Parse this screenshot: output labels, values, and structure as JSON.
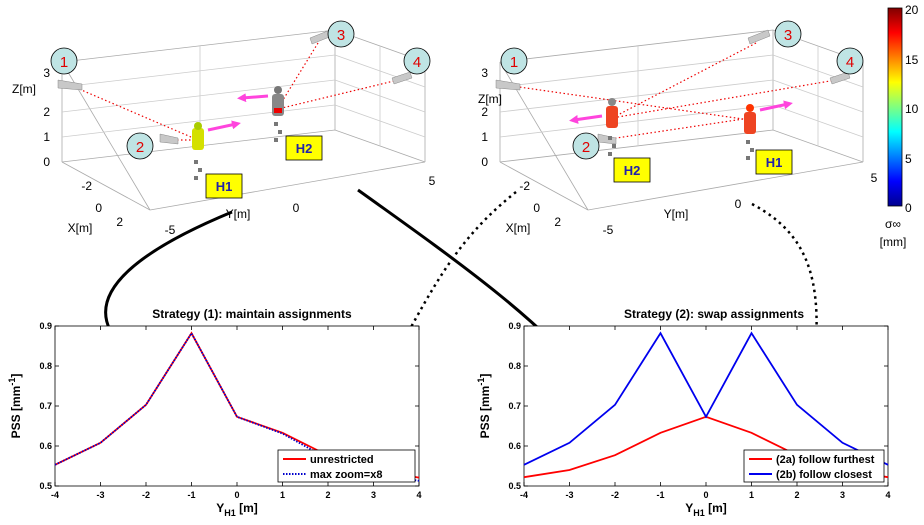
{
  "scene_left": {
    "x_ticks": [
      "-2",
      "0",
      "2"
    ],
    "x_label": "X[m]",
    "y_ticks": [
      "-5",
      "0",
      "5"
    ],
    "y_label": "Y[m]",
    "z_ticks": [
      "0",
      "1",
      "2",
      "3"
    ],
    "z_label": "Z[m]",
    "cameras": [
      "1",
      "2",
      "3",
      "4"
    ],
    "humans": [
      "H1",
      "H2"
    ]
  },
  "scene_right": {
    "x_ticks": [
      "-2",
      "0",
      "2"
    ],
    "x_label": "X[m]",
    "y_ticks": [
      "-5",
      "0",
      "5"
    ],
    "y_label": "Y[m]",
    "z_ticks": [
      "0",
      "1",
      "2",
      "3"
    ],
    "z_label": "Z[m]",
    "cameras": [
      "1",
      "2",
      "3",
      "4"
    ],
    "humans": [
      "H2",
      "H1"
    ]
  },
  "colorbar": {
    "ticks": [
      "0",
      "5",
      "10",
      "15",
      "20"
    ],
    "label_symbol": "σ∞",
    "label_unit": "[mm]"
  },
  "chart_data": [
    {
      "type": "line",
      "title": "Strategy (1): maintain assignments",
      "xlabel": "Y",
      "xlabel_sub": "H1",
      "xlabel_unit": " [m]",
      "ylabel": "PSS [mm",
      "ylabel_sup": "-1",
      "ylabel_end": "]",
      "xlim": [
        -4,
        4
      ],
      "ylim": [
        0.5,
        0.9
      ],
      "x_ticks": [
        "-4",
        "-3",
        "-2",
        "-1",
        "0",
        "1",
        "2",
        "3",
        "4"
      ],
      "y_ticks": [
        "0.5",
        "0.6",
        "0.7",
        "0.8",
        "0.9"
      ],
      "legend_position": "bottom-right",
      "x": [
        -4,
        -3,
        -2,
        -1,
        0,
        1,
        2,
        3,
        4
      ],
      "series": [
        {
          "name": "unrestricted",
          "color": "#ff0000",
          "style": "solid",
          "values": [
            0.553,
            0.608,
            0.703,
            0.882,
            0.673,
            0.633,
            0.576,
            0.54,
            0.521
          ]
        },
        {
          "name": "max zoom=x8",
          "color": "#0000cc",
          "style": "dotted",
          "values": [
            0.553,
            0.608,
            0.703,
            0.882,
            0.673,
            0.631,
            0.568,
            0.53,
            0.513
          ]
        }
      ]
    },
    {
      "type": "line",
      "title": "Strategy (2): swap assignments",
      "xlabel": "Y",
      "xlabel_sub": "H1",
      "xlabel_unit": " [m]",
      "ylabel": "PSS [mm",
      "ylabel_sup": "-1",
      "ylabel_end": "]",
      "xlim": [
        -4,
        4
      ],
      "ylim": [
        0.5,
        0.9
      ],
      "x_ticks": [
        "-4",
        "-3",
        "-2",
        "-1",
        "0",
        "1",
        "2",
        "3",
        "4"
      ],
      "y_ticks": [
        "0.5",
        "0.6",
        "0.7",
        "0.8",
        "0.9"
      ],
      "legend_position": "bottom-right",
      "x": [
        -4,
        -3,
        -2,
        -1,
        0,
        1,
        2,
        3,
        4
      ],
      "series": [
        {
          "name": "(2a) follow furthest",
          "color": "#ff0000",
          "style": "solid",
          "values": [
            0.522,
            0.54,
            0.577,
            0.633,
            0.673,
            0.633,
            0.577,
            0.54,
            0.522
          ]
        },
        {
          "name": "(2b) follow closest",
          "color": "#0000ee",
          "style": "solid",
          "values": [
            0.553,
            0.608,
            0.703,
            0.882,
            0.673,
            0.882,
            0.703,
            0.608,
            0.553
          ]
        }
      ]
    }
  ]
}
